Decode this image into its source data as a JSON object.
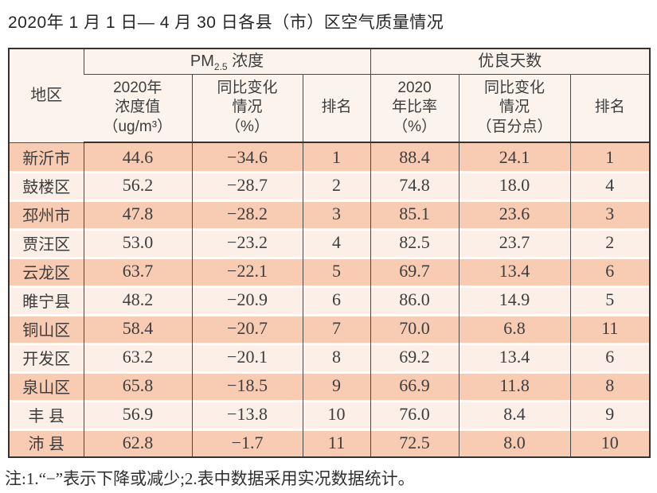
{
  "title": "2020年 1 月 1 日— 4 月 30 日各县（市）区空气质量情况",
  "note": "注:1.“−”表示下降或减少;2.表中数据采用实况数据统计。",
  "colors": {
    "row_odd": "#f8ccb2",
    "row_even": "#fcefe7",
    "header_bg": "#fcf3ec",
    "border": "#4a4a4a",
    "text": "#3d3d3d"
  },
  "table": {
    "header": {
      "region": "地区",
      "pm_group_prefix": "PM",
      "pm_group_sub": "2.5",
      "pm_group_suffix": " 浓度",
      "days_group": "优良天数",
      "pm_value": "2020年\n浓度值\n（ug/m³）",
      "pm_change": "同比变化\n情况\n（%）",
      "pm_rank": "排名",
      "days_rate": "2020\n年比率\n（%）",
      "days_change": "同比变化\n情况\n（百分点）",
      "days_rank": "排名"
    },
    "rows": [
      {
        "region": "新沂市",
        "pm_value": "44.6",
        "pm_change": "−34.6",
        "pm_rank": "1",
        "days_rate": "88.4",
        "days_change": "24.1",
        "days_rank": "1"
      },
      {
        "region": "鼓楼区",
        "pm_value": "56.2",
        "pm_change": "−28.7",
        "pm_rank": "2",
        "days_rate": "74.8",
        "days_change": "18.0",
        "days_rank": "4"
      },
      {
        "region": "邳州市",
        "pm_value": "47.8",
        "pm_change": "−28.2",
        "pm_rank": "3",
        "days_rate": "85.1",
        "days_change": "23.6",
        "days_rank": "3"
      },
      {
        "region": "贾汪区",
        "pm_value": "53.0",
        "pm_change": "−23.2",
        "pm_rank": "4",
        "days_rate": "82.5",
        "days_change": "23.7",
        "days_rank": "2"
      },
      {
        "region": "云龙区",
        "pm_value": "63.7",
        "pm_change": "−22.1",
        "pm_rank": "5",
        "days_rate": "69.7",
        "days_change": "13.4",
        "days_rank": "6"
      },
      {
        "region": "睢宁县",
        "pm_value": "48.2",
        "pm_change": "−20.9",
        "pm_rank": "6",
        "days_rate": "86.0",
        "days_change": "14.9",
        "days_rank": "5"
      },
      {
        "region": "铜山区",
        "pm_value": "58.4",
        "pm_change": "−20.7",
        "pm_rank": "7",
        "days_rate": "70.0",
        "days_change": "6.8",
        "days_rank": "11"
      },
      {
        "region": "开发区",
        "pm_value": "63.2",
        "pm_change": "−20.1",
        "pm_rank": "8",
        "days_rate": "69.2",
        "days_change": "13.4",
        "days_rank": "6"
      },
      {
        "region": "泉山区",
        "pm_value": "65.8",
        "pm_change": "−18.5",
        "pm_rank": "9",
        "days_rate": "66.9",
        "days_change": "11.8",
        "days_rank": "8"
      },
      {
        "region": "丰 县",
        "pm_value": "56.9",
        "pm_change": "−13.8",
        "pm_rank": "10",
        "days_rate": "76.0",
        "days_change": "8.4",
        "days_rank": "9"
      },
      {
        "region": "沛 县",
        "pm_value": "62.8",
        "pm_change": "−1.7",
        "pm_rank": "11",
        "days_rate": "72.5",
        "days_change": "8.0",
        "days_rank": "10"
      }
    ]
  }
}
